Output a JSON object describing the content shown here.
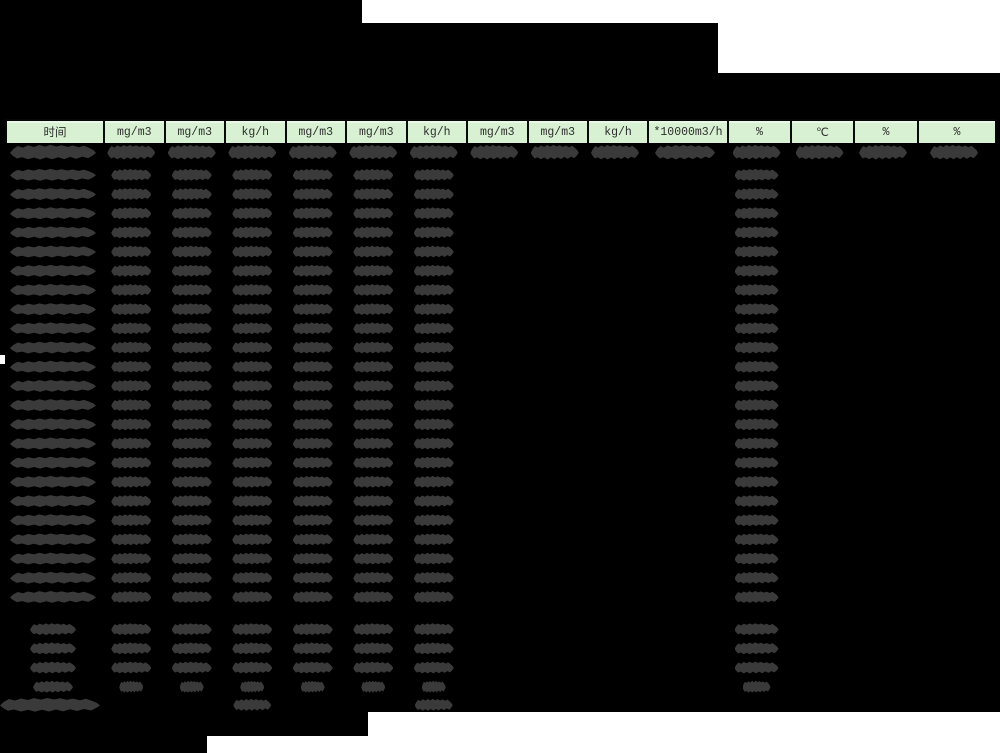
{
  "page": {
    "description": "redacted emissions monitoring report",
    "background": "#ffffff"
  },
  "colors": {
    "page_bg": "#ffffff",
    "redaction_black": "#000000",
    "header_green": "#d8f1d2",
    "header_text": "#2d2d2d",
    "scribble_over_green": "#647f5e",
    "scribble_gray": "#3a3a3a"
  },
  "table": {
    "columns": [
      {
        "label": "时间"
      },
      {
        "label": "mg/m3"
      },
      {
        "label": "mg/m3"
      },
      {
        "label": "kg/h"
      },
      {
        "label": "mg/m3"
      },
      {
        "label": "mg/m3"
      },
      {
        "label": "kg/h"
      },
      {
        "label": "mg/m3"
      },
      {
        "label": "mg/m3"
      },
      {
        "label": "kg/h"
      },
      {
        "label": "*10000m3/h"
      },
      {
        "label": "%"
      },
      {
        "label": "℃"
      },
      {
        "label": "%"
      },
      {
        "label": "%"
      }
    ],
    "rows": {
      "main_count": 24,
      "first_row_redacted_columns": [
        0,
        1,
        2,
        3,
        4,
        5,
        6,
        7,
        8,
        9,
        10,
        11,
        12,
        13,
        14
      ],
      "main_redacted_columns": [
        0,
        1,
        2,
        3,
        4,
        5,
        6,
        11
      ],
      "summary_count": 4,
      "summary_redacted_columns": [
        0,
        1,
        2,
        3,
        4,
        5,
        6,
        11
      ],
      "total_redacted_columns": [
        0,
        3,
        6
      ]
    }
  }
}
